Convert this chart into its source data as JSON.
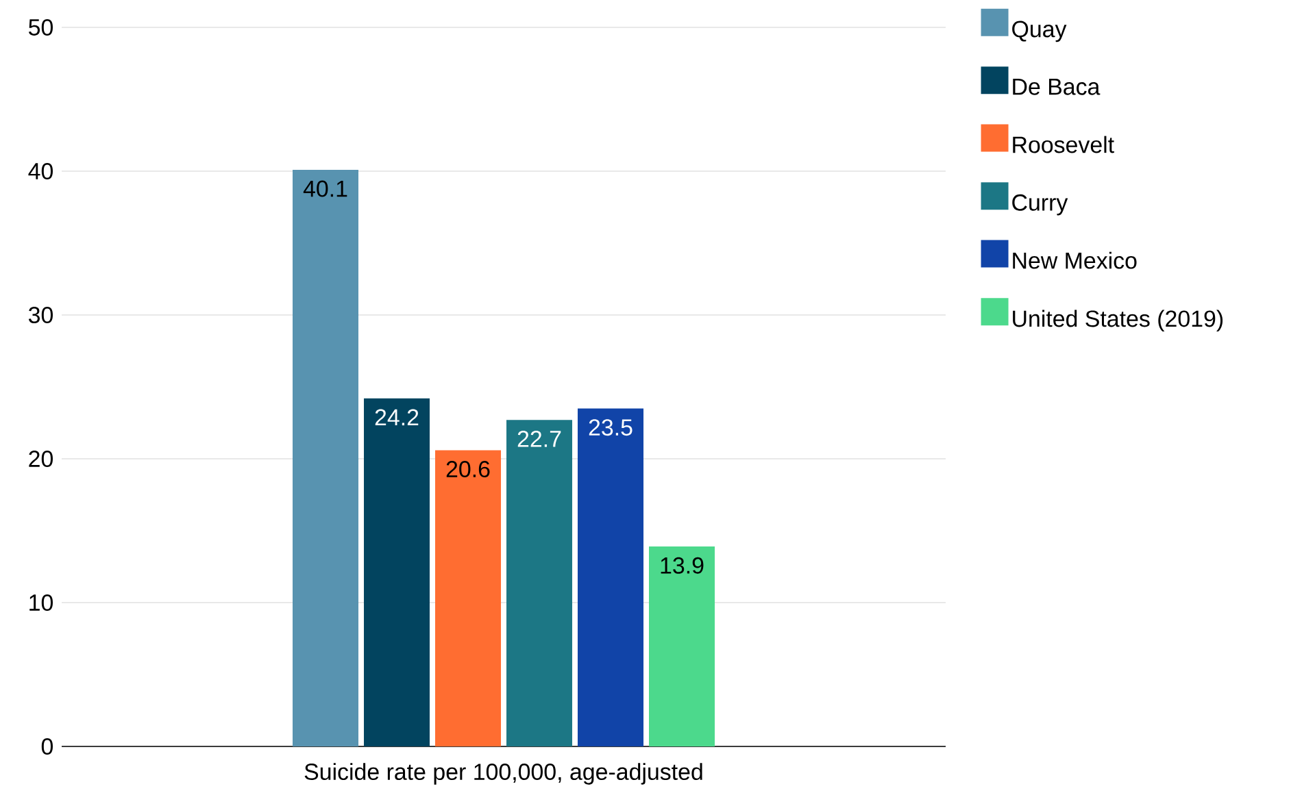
{
  "chart_data": {
    "type": "bar",
    "categories": [
      "Suicide rate per 100,000, age-adjusted"
    ],
    "series": [
      {
        "name": "Quay",
        "color": "#5893b0",
        "values": [
          40.1
        ]
      },
      {
        "name": "De Baca",
        "color": "#02445f",
        "values": [
          24.2
        ]
      },
      {
        "name": "Roosevelt",
        "color": "#ff6d31",
        "values": [
          20.6
        ]
      },
      {
        "name": "Curry",
        "color": "#1c7785",
        "values": [
          22.7
        ]
      },
      {
        "name": "New Mexico",
        "color": "#1144a8",
        "values": [
          23.5
        ]
      },
      {
        "name": "United States (2019)",
        "color": "#4cd98c",
        "values": [
          13.9
        ]
      }
    ],
    "ylim": [
      0,
      50
    ],
    "yticks": [
      0,
      10,
      20,
      30,
      40,
      50
    ],
    "grid": "y",
    "legend": "right",
    "data_labels": true
  }
}
